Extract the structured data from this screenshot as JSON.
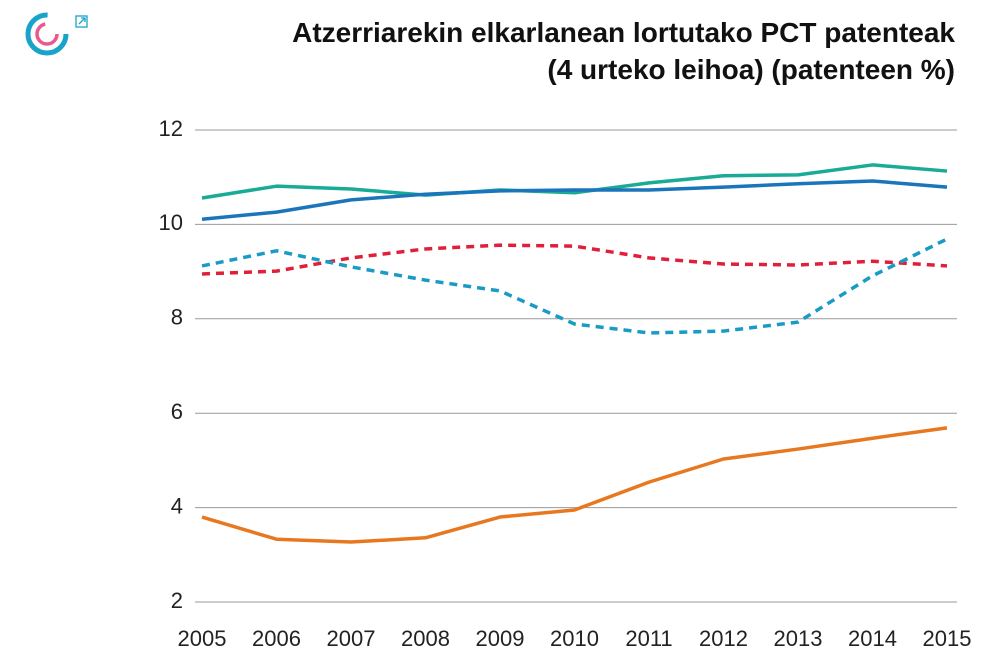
{
  "chart_data": {
    "type": "line",
    "title": "Atzerriarekin elkarlanean lortutako PCT patenteak (4 urteko leihoa) (patenteen %)",
    "x": [
      2005,
      2006,
      2007,
      2008,
      2009,
      2010,
      2011,
      2012,
      2013,
      2014,
      2015
    ],
    "xlim": [
      2005,
      2015
    ],
    "xticks": [
      2005,
      2006,
      2007,
      2008,
      2009,
      2010,
      2011,
      2012,
      2013,
      2014,
      2015
    ],
    "ylim": [
      2,
      12
    ],
    "yticks": [
      2,
      4,
      6,
      8,
      10,
      12
    ],
    "grid": true,
    "series": [
      {
        "color": "#1aab96",
        "dashed": false,
        "values": [
          10.56,
          10.81,
          10.75,
          10.62,
          10.73,
          10.67,
          10.88,
          11.03,
          11.05,
          11.26,
          11.13
        ]
      },
      {
        "color": "#1a75bb",
        "dashed": false,
        "values": [
          10.11,
          10.26,
          10.52,
          10.64,
          10.71,
          10.73,
          10.73,
          10.79,
          10.86,
          10.92,
          10.79
        ]
      },
      {
        "color": "#e0203a",
        "dashed": true,
        "values": [
          8.95,
          9.01,
          9.29,
          9.48,
          9.56,
          9.54,
          9.29,
          9.16,
          9.14,
          9.22,
          9.12
        ]
      },
      {
        "color": "#199bc4",
        "dashed": true,
        "values": [
          9.12,
          9.44,
          9.1,
          8.82,
          8.59,
          7.89,
          7.7,
          7.74,
          7.93,
          8.91,
          9.69
        ]
      },
      {
        "color": "#e8781f",
        "dashed": false,
        "values": [
          3.8,
          3.33,
          3.27,
          3.36,
          3.8,
          3.95,
          4.54,
          5.03,
          5.24,
          5.47,
          5.69
        ]
      }
    ]
  }
}
